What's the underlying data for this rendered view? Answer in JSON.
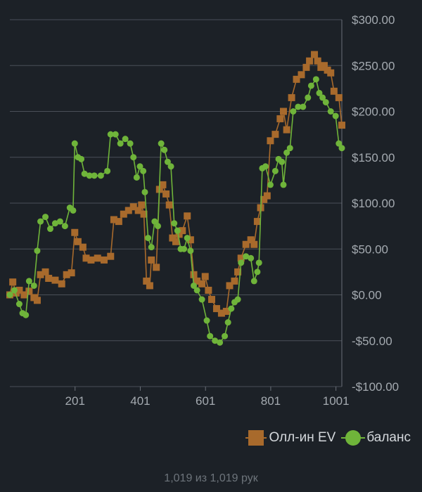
{
  "chart_data": {
    "type": "line",
    "title": "",
    "xlabel": "",
    "ylabel": "",
    "xlim": [
      1,
      1019
    ],
    "ylim": [
      -100,
      300
    ],
    "x_ticks": [
      201,
      401,
      601,
      801,
      1001
    ],
    "x_tick_labels": [
      "201",
      "401",
      "601",
      "801",
      "1001"
    ],
    "y_ticks": [
      -100,
      -50,
      0,
      50,
      100,
      150,
      200,
      250,
      300
    ],
    "y_tick_labels": [
      "-$100.00",
      "-$50.00",
      "$0.00",
      "$50.00",
      "$100.00",
      "$150.00",
      "$200.00",
      "$250.00",
      "$300.00"
    ],
    "y_axis_side": "right",
    "grid": "horizontal",
    "legend_position": "bottom-right",
    "series": [
      {
        "name": "Олл-ин EV",
        "color": "#a86a2c",
        "marker": "square",
        "points": [
          [
            1,
            0
          ],
          [
            10,
            14
          ],
          [
            20,
            2
          ],
          [
            30,
            5
          ],
          [
            45,
            0
          ],
          [
            60,
            4
          ],
          [
            75,
            -3
          ],
          [
            85,
            -6
          ],
          [
            95,
            22
          ],
          [
            110,
            25
          ],
          [
            120,
            18
          ],
          [
            140,
            16
          ],
          [
            160,
            12
          ],
          [
            175,
            22
          ],
          [
            190,
            24
          ],
          [
            200,
            68
          ],
          [
            210,
            58
          ],
          [
            225,
            52
          ],
          [
            235,
            40
          ],
          [
            250,
            38
          ],
          [
            270,
            40
          ],
          [
            290,
            38
          ],
          [
            310,
            42
          ],
          [
            320,
            82
          ],
          [
            335,
            80
          ],
          [
            350,
            88
          ],
          [
            365,
            92
          ],
          [
            380,
            96
          ],
          [
            395,
            92
          ],
          [
            405,
            98
          ],
          [
            412,
            88
          ],
          [
            420,
            15
          ],
          [
            430,
            10
          ],
          [
            435,
            38
          ],
          [
            450,
            30
          ],
          [
            460,
            115
          ],
          [
            470,
            120
          ],
          [
            480,
            110
          ],
          [
            490,
            98
          ],
          [
            500,
            62
          ],
          [
            510,
            58
          ],
          [
            520,
            66
          ],
          [
            530,
            70
          ],
          [
            545,
            86
          ],
          [
            555,
            60
          ],
          [
            565,
            22
          ],
          [
            575,
            15
          ],
          [
            590,
            12
          ],
          [
            600,
            20
          ],
          [
            610,
            5
          ],
          [
            620,
            -5
          ],
          [
            635,
            -15
          ],
          [
            650,
            -20
          ],
          [
            665,
            -18
          ],
          [
            675,
            10
          ],
          [
            690,
            15
          ],
          [
            700,
            25
          ],
          [
            710,
            40
          ],
          [
            725,
            55
          ],
          [
            740,
            60
          ],
          [
            750,
            55
          ],
          [
            760,
            80
          ],
          [
            770,
            95
          ],
          [
            780,
            104
          ],
          [
            790,
            108
          ],
          [
            800,
            168
          ],
          [
            815,
            175
          ],
          [
            830,
            192
          ],
          [
            840,
            200
          ],
          [
            850,
            180
          ],
          [
            865,
            215
          ],
          [
            880,
            235
          ],
          [
            895,
            240
          ],
          [
            910,
            248
          ],
          [
            920,
            255
          ],
          [
            935,
            262
          ],
          [
            945,
            255
          ],
          [
            955,
            248
          ],
          [
            965,
            250
          ],
          [
            975,
            245
          ],
          [
            985,
            242
          ],
          [
            995,
            222
          ],
          [
            1010,
            215
          ],
          [
            1019,
            185
          ]
        ]
      },
      {
        "name": "баланс",
        "color": "#6fb43a",
        "marker": "circle",
        "points": [
          [
            1,
            0
          ],
          [
            15,
            5
          ],
          [
            30,
            -10
          ],
          [
            40,
            -20
          ],
          [
            50,
            -22
          ],
          [
            60,
            15
          ],
          [
            75,
            10
          ],
          [
            85,
            48
          ],
          [
            95,
            80
          ],
          [
            110,
            85
          ],
          [
            125,
            72
          ],
          [
            140,
            78
          ],
          [
            155,
            80
          ],
          [
            170,
            75
          ],
          [
            185,
            95
          ],
          [
            195,
            92
          ],
          [
            200,
            165
          ],
          [
            210,
            150
          ],
          [
            220,
            148
          ],
          [
            230,
            132
          ],
          [
            245,
            130
          ],
          [
            260,
            130
          ],
          [
            280,
            130
          ],
          [
            300,
            135
          ],
          [
            310,
            175
          ],
          [
            325,
            175
          ],
          [
            340,
            165
          ],
          [
            355,
            170
          ],
          [
            370,
            165
          ],
          [
            380,
            150
          ],
          [
            390,
            128
          ],
          [
            400,
            140
          ],
          [
            410,
            135
          ],
          [
            415,
            112
          ],
          [
            425,
            62
          ],
          [
            435,
            52
          ],
          [
            445,
            80
          ],
          [
            455,
            75
          ],
          [
            465,
            165
          ],
          [
            475,
            158
          ],
          [
            485,
            145
          ],
          [
            495,
            140
          ],
          [
            505,
            78
          ],
          [
            515,
            70
          ],
          [
            525,
            50
          ],
          [
            535,
            50
          ],
          [
            545,
            62
          ],
          [
            555,
            48
          ],
          [
            565,
            10
          ],
          [
            575,
            5
          ],
          [
            590,
            -5
          ],
          [
            605,
            -28
          ],
          [
            615,
            -45
          ],
          [
            630,
            -50
          ],
          [
            645,
            -52
          ],
          [
            660,
            -45
          ],
          [
            670,
            -30
          ],
          [
            680,
            -15
          ],
          [
            690,
            -8
          ],
          [
            700,
            -5
          ],
          [
            710,
            35
          ],
          [
            725,
            42
          ],
          [
            740,
            40
          ],
          [
            750,
            15
          ],
          [
            760,
            25
          ],
          [
            765,
            35
          ],
          [
            775,
            138
          ],
          [
            785,
            140
          ],
          [
            800,
            120
          ],
          [
            815,
            135
          ],
          [
            825,
            148
          ],
          [
            835,
            145
          ],
          [
            840,
            120
          ],
          [
            850,
            155
          ],
          [
            860,
            160
          ],
          [
            870,
            200
          ],
          [
            885,
            205
          ],
          [
            900,
            205
          ],
          [
            915,
            215
          ],
          [
            925,
            228
          ],
          [
            940,
            235
          ],
          [
            950,
            220
          ],
          [
            960,
            215
          ],
          [
            970,
            210
          ],
          [
            985,
            200
          ],
          [
            1000,
            195
          ],
          [
            1010,
            165
          ],
          [
            1019,
            160
          ]
        ]
      }
    ]
  },
  "footer": {
    "hands_text": "1,019 из 1,019 рук"
  }
}
